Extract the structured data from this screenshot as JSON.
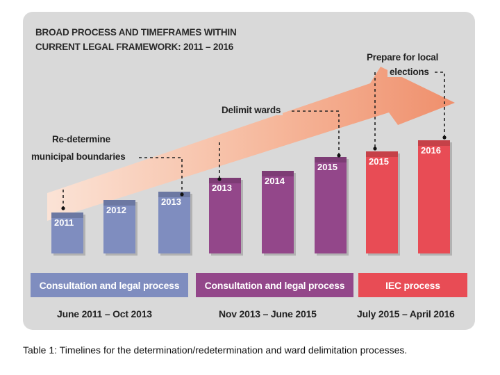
{
  "title": {
    "line1": "BROAD PROCESS AND TIMEFRAMES WITHIN",
    "line2": "CURRENT LEGAL FRAMEWORK: 2011 – 2016"
  },
  "milestones": {
    "redetermine_line1": "Re-determine",
    "redetermine_line2": "municipal boundaries",
    "delimit": "Delimit wards",
    "prepare_line1": "Prepare for local",
    "prepare_line2": "elections"
  },
  "bars": [
    {
      "year": "2011",
      "color": "#7f8dbf"
    },
    {
      "year": "2012",
      "color": "#7f8dbf"
    },
    {
      "year": "2013",
      "color": "#7f8dbf"
    },
    {
      "year": "2013",
      "color": "#93478a"
    },
    {
      "year": "2014",
      "color": "#93478a"
    },
    {
      "year": "2015",
      "color": "#93478a"
    },
    {
      "year": "2015",
      "color": "#e84c55"
    },
    {
      "year": "2016",
      "color": "#e84c55"
    }
  ],
  "phases": [
    {
      "label": "Consultation and legal process",
      "period": "June 2011 – Oct 2013",
      "color": "#7f8dbf"
    },
    {
      "label": "Consultation and legal process",
      "period": "Nov 2013 – June 2015",
      "color": "#93478a"
    },
    {
      "label": "IEC process",
      "period": "July 2015 – April 2016",
      "color": "#e84c55"
    }
  ],
  "caption": "Table 1: Timelines for the determination/redetermination and ward delimitation processes."
}
